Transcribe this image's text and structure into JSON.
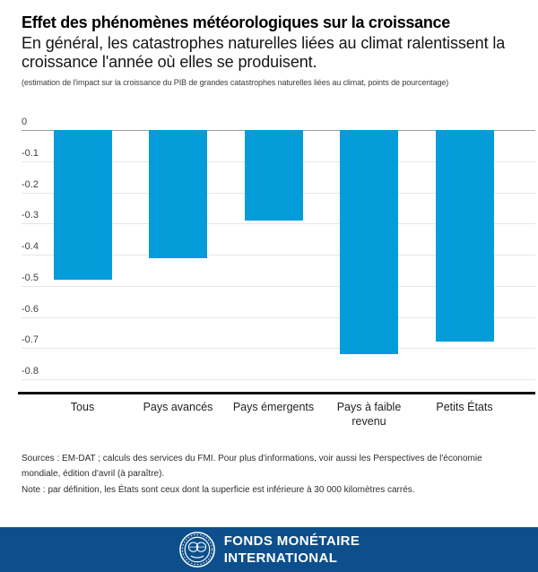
{
  "header": {
    "title": "Effet des phénomènes météorologiques sur la croissance",
    "subtitle": "En général, les catastrophes naturelles liées au climat ralentissent la croissance l'année où elles se produisent.",
    "unit_note": "(estimation de l'impact sur la croissance du PIB de grandes catastrophes naturelles liées au climat, points de pourcentage)"
  },
  "chart_data": {
    "type": "bar",
    "title": "Effet des phénomènes météorologiques sur la croissance",
    "categories": [
      "Tous",
      "Pays avancés",
      "Pays émergents",
      "Pays à faible revenu",
      "Petits États"
    ],
    "values": [
      -0.48,
      -0.41,
      -0.29,
      -0.72,
      -0.68
    ],
    "ylabel": "points de pourcentage",
    "ylim": [
      -0.8,
      0
    ],
    "yticks": [
      "0",
      "-0.1",
      "-0.2",
      "-0.3",
      "-0.4",
      "-0.5",
      "-0.6",
      "-0.7",
      "-0.8"
    ],
    "grid": true,
    "legend": false,
    "bar_color": "#049dda",
    "zero_line_color": "#9e9e9e",
    "gridline_color": "#e6e6e6"
  },
  "footer": {
    "sources": "Sources : EM-DAT ; calculs des services du FMI. Pour plus d'informations, voir aussi les Perspectives de l'économie mondiale, édition d'avril (à paraître).",
    "note": "Note : par définition, les États sont ceux dont la superficie est inférieure à 30 000 kilomètres carrés."
  },
  "banner": {
    "org_name_line1": "FONDS MONÉTAIRE",
    "org_name_line2": "INTERNATIONAL",
    "bg_color": "#0d4f8c"
  }
}
